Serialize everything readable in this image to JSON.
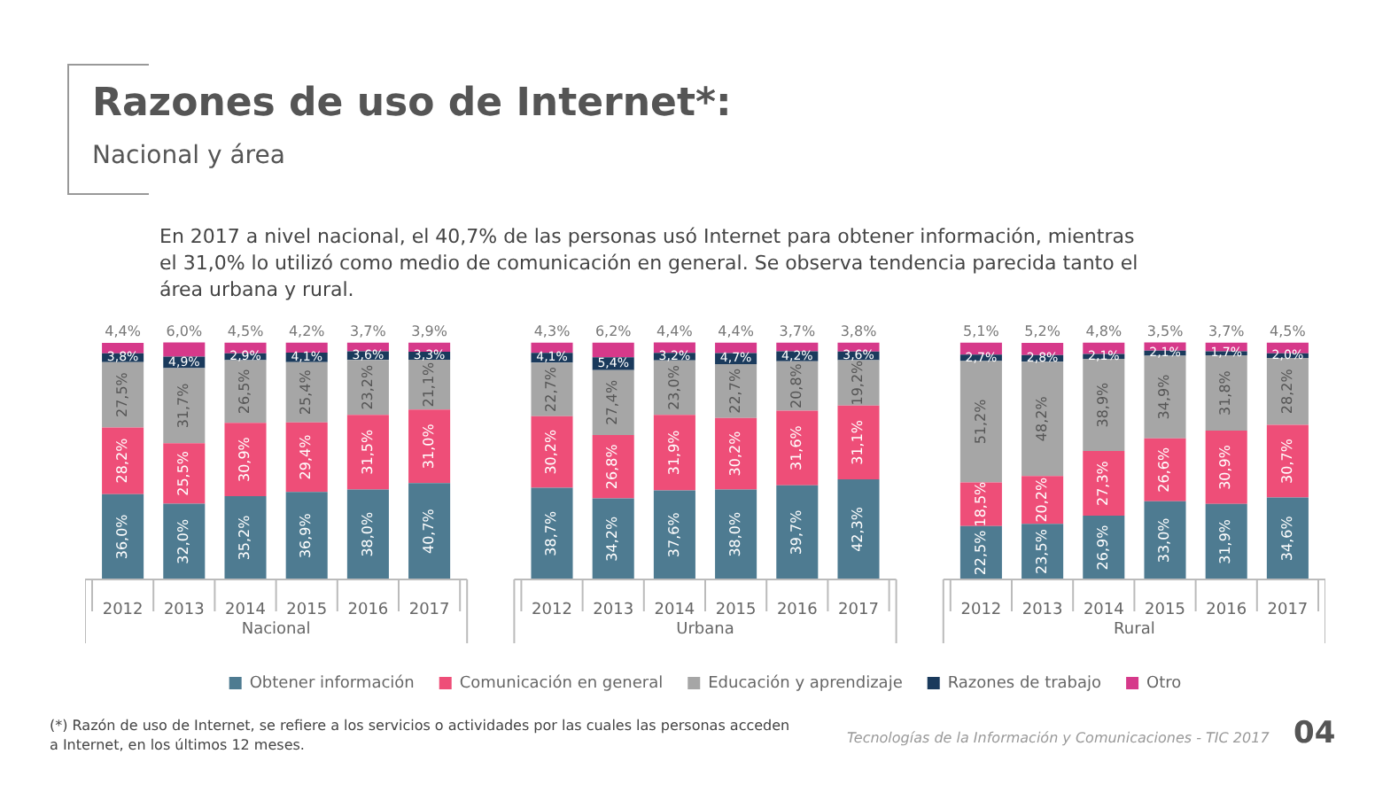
{
  "chart_data": {
    "type": "bar",
    "title": "Razones de uso de Internet*:",
    "subtitle": "Nacional y área",
    "categories": [
      "2012",
      "2013",
      "2014",
      "2015",
      "2016",
      "2017",
      null,
      "2012",
      "2013",
      "2014",
      "2015",
      "2016",
      "2017",
      null,
      "2012",
      "2013",
      "2014",
      "2015",
      "2016",
      "2017"
    ],
    "stacked": true,
    "ylim": [
      0,
      101
    ],
    "tick_labels": "x",
    "legend": "bottom",
    "series": [
      {
        "name": "Obtener información",
        "color": "#4e7b91",
        "values": [
          36.0,
          32.0,
          35.2,
          36.9,
          38.0,
          40.7,
          null,
          38.7,
          34.2,
          37.6,
          38.0,
          39.7,
          42.3,
          null,
          22.5,
          23.5,
          26.9,
          33.0,
          31.9,
          34.6
        ],
        "value_labels": [
          "36,0%",
          "32,0%",
          "35,2%",
          "36,9%",
          "38,0%",
          "40,7%",
          null,
          "38,7%",
          "34,2%",
          "37,6%",
          "38,0%",
          "39,7%",
          "42,3%",
          null,
          "22,5%",
          "23,5%",
          "26,9%",
          "33,0%",
          "31,9%",
          "34,6%"
        ]
      },
      {
        "name": "Comunicación en general",
        "color": "#ee4e78",
        "values": [
          28.2,
          25.5,
          30.9,
          29.4,
          31.5,
          31.0,
          null,
          30.2,
          26.8,
          31.9,
          30.2,
          31.6,
          31.1,
          null,
          18.5,
          20.2,
          27.3,
          26.6,
          30.9,
          30.7
        ],
        "value_labels": [
          "28,2%",
          "25,5%",
          "30,9%",
          "29,4%",
          "31,5%",
          "31,0%",
          null,
          "30,2%",
          "26,8%",
          "31,9%",
          "30,2%",
          "31,6%",
          "31,1%",
          null,
          "18,5%",
          "20,2%",
          "27,3%",
          "26,6%",
          "30,9%",
          "30,7%"
        ]
      },
      {
        "name": "Educación y aprendizaje",
        "color": "#a6a6a6",
        "values": [
          27.5,
          31.7,
          26.5,
          25.4,
          23.2,
          21.1,
          null,
          22.7,
          27.4,
          23.0,
          22.7,
          20.8,
          19.2,
          null,
          51.2,
          48.2,
          38.9,
          34.9,
          31.8,
          28.2
        ],
        "value_labels": [
          "27,5%",
          "31,7%",
          "26,5%",
          "25,4%",
          "23,2%",
          "21,1%",
          null,
          "22,7%",
          "27,4%",
          "23,0%",
          "22,7%",
          "20,8%",
          "19,2%",
          null,
          "51,2%",
          "48,2%",
          "38,9%",
          "34,9%",
          "31,8%",
          "28,2%"
        ]
      },
      {
        "name": "Razones de trabajo",
        "color": "#1a3a5c",
        "values": [
          3.8,
          4.9,
          2.9,
          4.1,
          3.6,
          3.3,
          null,
          4.1,
          5.4,
          3.2,
          4.7,
          4.2,
          3.6,
          null,
          2.7,
          2.8,
          2.1,
          2.1,
          1.7,
          2.0
        ],
        "value_labels": [
          "3,8%",
          "4,9%",
          "2,9%",
          "4,1%",
          "3,6%",
          "3,3%",
          null,
          "4,1%",
          "5,4%",
          "3,2%",
          "4,7%",
          "4,2%",
          "3,6%",
          null,
          "2,7%",
          "2,8%",
          "2,1%",
          "2,1%",
          "1,7%",
          "2,0%"
        ]
      },
      {
        "name": "Otro",
        "color": "#d6398a",
        "values": [
          4.4,
          6.0,
          4.5,
          4.2,
          3.7,
          3.9,
          null,
          4.3,
          6.2,
          4.4,
          4.4,
          3.7,
          3.8,
          null,
          5.1,
          5.2,
          4.8,
          3.5,
          3.7,
          4.5
        ],
        "value_labels": [
          "4,4%",
          "6,0%",
          "4,5%",
          "4,2%",
          "3,7%",
          "3,9%",
          null,
          "4,3%",
          "6,2%",
          "4,4%",
          "4,4%",
          "3,7%",
          "3,8%",
          null,
          "5,1%",
          "5,2%",
          "4,8%",
          "3,5%",
          "3,7%",
          "4,5%"
        ]
      }
    ],
    "annotations": [
      "Nacional",
      "Urbana",
      "Rural",
      "En 2017 a nivel nacional, el 40,7% de las personas usó Internet para obtener información, mientras el 31,0% lo utilizó como medio de comunicación en general. Se observa tendencia parecida tanto el área urbana y rural.",
      "(*) Razón de uso de Internet, se refiere a los servicios o actividades por las cuales las personas acceden a Internet, en los últimos 12 meses.",
      "Tecnologías de la Información y Comunicaciones - TIC 2017",
      "04"
    ]
  }
}
